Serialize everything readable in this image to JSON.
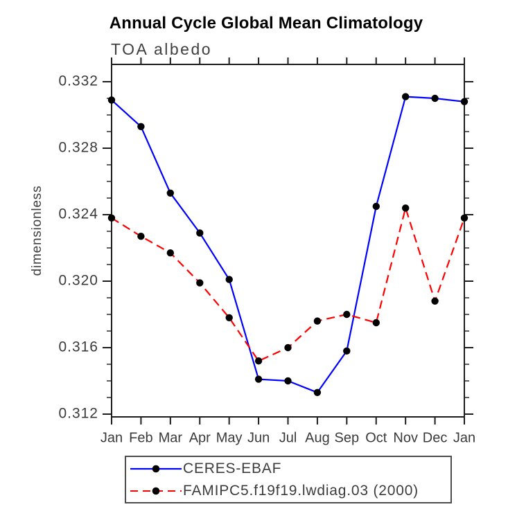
{
  "chart_data": {
    "type": "line",
    "title": "Annual Cycle Global Mean Climatology",
    "subtitle": "TOA albedo",
    "xlabel": "",
    "ylabel": "dimensionless",
    "categories": [
      "Jan",
      "Feb",
      "Mar",
      "Apr",
      "May",
      "Jun",
      "Jul",
      "Aug",
      "Sep",
      "Oct",
      "Nov",
      "Dec",
      "Jan"
    ],
    "ylim": [
      0.3118,
      0.333
    ],
    "y_tick_values": [
      0.312,
      0.316,
      0.32,
      0.324,
      0.328,
      0.332
    ],
    "y_tick_labels": [
      "0.312",
      "0.316",
      "0.320",
      "0.324",
      "0.328",
      "0.332"
    ],
    "y_minor_tick_step": 0.001,
    "grid": false,
    "legend_position": "bottom",
    "series": [
      {
        "name": "CERES-EBAF",
        "color": "#0000ff",
        "line_style": "solid",
        "marker": "circle",
        "marker_color": "#000000",
        "values": [
          0.3309,
          0.3293,
          0.3253,
          0.3229,
          0.3201,
          0.3141,
          0.314,
          0.3133,
          0.3158,
          0.3245,
          0.3311,
          0.331,
          0.3308
        ]
      },
      {
        "name": "FAMIPC5.f19f19.lwdiag.03 (2000)",
        "color": "#ff0000",
        "line_style": "dashed",
        "marker": "circle",
        "marker_color": "#000000",
        "values": [
          0.3238,
          0.3227,
          0.3217,
          0.3199,
          0.3178,
          0.3152,
          0.316,
          0.3176,
          0.318,
          0.3175,
          0.3244,
          0.3188,
          0.3238
        ]
      }
    ]
  },
  "colors": {
    "background": "#ffffff",
    "axis": "#1c1c1c",
    "tick_label": "#3a3a3a",
    "title": "#000000"
  }
}
